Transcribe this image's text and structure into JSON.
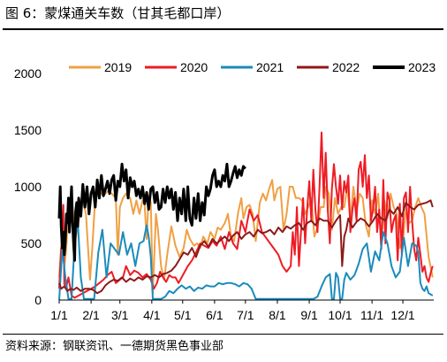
{
  "figure": {
    "title": "图 6：蒙煤通关车数（甘其毛都口岸）",
    "source": "资料来源：钢联资讯、一德期货黑色事业部"
  },
  "chart_data": {
    "type": "line",
    "title": "",
    "xlabel": "",
    "ylabel": "",
    "x_tick_labels": [
      "1/1",
      "2/1",
      "3/1",
      "4/1",
      "5/1",
      "6/1",
      "7/1",
      "8/1",
      "9/1",
      "10/1",
      "11/1",
      "12/1"
    ],
    "ylim": [
      0,
      2000
    ],
    "y_ticks": [
      0,
      500,
      1000,
      1500,
      2000
    ],
    "grid": false,
    "legend_position": "top",
    "x_unit": "day of year",
    "series": [
      {
        "name": "2019",
        "color": "#f0a044",
        "x": [
          1,
          4,
          6,
          8,
          10,
          14,
          17,
          20,
          24,
          27,
          31,
          33,
          36,
          40,
          44,
          48,
          52,
          56,
          58,
          60,
          63,
          66,
          70,
          73,
          76,
          79,
          82,
          84,
          86,
          88,
          90,
          92,
          95,
          97,
          100,
          103,
          106,
          110,
          114,
          118,
          122,
          125,
          128,
          132,
          135,
          138,
          141,
          145,
          148,
          152,
          155,
          158,
          162,
          165,
          168,
          171,
          175,
          178,
          180,
          183,
          186,
          189,
          192,
          196,
          199,
          202,
          205,
          208,
          210,
          213,
          216,
          219,
          222,
          225,
          228,
          231,
          234,
          237,
          240,
          243,
          246,
          249,
          252,
          255,
          258,
          260,
          263,
          266,
          269,
          272,
          275,
          278,
          281,
          284,
          287,
          290,
          293,
          296,
          299,
          302,
          305,
          308,
          311,
          314,
          317,
          320,
          323,
          326,
          329,
          332,
          335,
          338,
          341,
          344,
          347,
          350,
          353,
          356,
          360,
          364
        ],
        "y": [
          200,
          620,
          280,
          480,
          860,
          820,
          540,
          700,
          880,
          760,
          180,
          440,
          900,
          960,
          920,
          960,
          940,
          900,
          400,
          820,
          900,
          940,
          900,
          760,
          880,
          760,
          880,
          840,
          540,
          920,
          860,
          60,
          760,
          620,
          300,
          180,
          400,
          650,
          480,
          380,
          460,
          620,
          540,
          480,
          500,
          460,
          560,
          500,
          600,
          540,
          640,
          620,
          680,
          760,
          560,
          520,
          780,
          900,
          720,
          820,
          840,
          760,
          520,
          860,
          940,
          880,
          980,
          1060,
          880,
          980,
          1000,
          620,
          760,
          1000,
          1000,
          900,
          900,
          880,
          760,
          820,
          900,
          560,
          640,
          820,
          820,
          1000,
          940,
          620,
          900,
          760,
          820,
          820,
          1000,
          700,
          1000,
          780,
          940,
          900,
          660,
          560,
          880,
          760,
          940,
          500,
          880,
          720,
          940,
          820,
          760,
          460,
          520,
          800,
          680,
          700,
          820,
          900,
          820,
          760,
          380,
          200
        ]
      },
      {
        "name": "2020",
        "color": "#ee1c25",
        "x": [
          1,
          2,
          3,
          4,
          5,
          6,
          8,
          10,
          13,
          16,
          20,
          24,
          28,
          32,
          36,
          40,
          44,
          48,
          52,
          56,
          60,
          63,
          66,
          70,
          74,
          78,
          82,
          86,
          90,
          93,
          96,
          99,
          102,
          105,
          108,
          111,
          114,
          117,
          120,
          123,
          126,
          130,
          134,
          138,
          142,
          146,
          150,
          154,
          158,
          162,
          166,
          170,
          174,
          178,
          182,
          186,
          190,
          194,
          198,
          202,
          206,
          210,
          214,
          218,
          222,
          226,
          228,
          230,
          232,
          234,
          236,
          238,
          240,
          242,
          244,
          246,
          248,
          250,
          252,
          254,
          256,
          258,
          260,
          262,
          264,
          266,
          268,
          270,
          272,
          274,
          276,
          278,
          280,
          282,
          284,
          286,
          288,
          290,
          292,
          294,
          296,
          298,
          300,
          302,
          304,
          306,
          308,
          310,
          312,
          314,
          316,
          318,
          320,
          322,
          324,
          326,
          328,
          330,
          332,
          334,
          336,
          338,
          340,
          342,
          344,
          346,
          348,
          350,
          352,
          354,
          356,
          358,
          360,
          362,
          364
        ],
        "y": [
          100,
          300,
          460,
          420,
          840,
          140,
          120,
          200,
          40,
          20,
          40,
          60,
          80,
          100,
          120,
          150,
          180,
          220,
          250,
          150,
          180,
          200,
          300,
          220,
          260,
          240,
          200,
          230,
          180,
          100,
          150,
          250,
          200,
          160,
          220,
          200,
          200,
          150,
          200,
          250,
          300,
          350,
          420,
          500,
          480,
          460,
          520,
          480,
          560,
          450,
          600,
          500,
          450,
          700,
          600,
          800,
          700,
          750,
          600,
          550,
          500,
          450,
          400,
          300,
          250,
          300,
          600,
          400,
          820,
          300,
          600,
          900,
          500,
          800,
          1050,
          700,
          1150,
          800,
          600,
          1000,
          1480,
          900,
          1300,
          800,
          500,
          980,
          1200,
          1000,
          850,
          1100,
          800,
          1050,
          950,
          1100,
          600,
          800,
          900,
          700,
          1150,
          1220,
          1000,
          1280,
          900,
          1100,
          700,
          800,
          1000,
          600,
          800,
          450,
          1060,
          500,
          950,
          880,
          600,
          700,
          750,
          350,
          850,
          400,
          900,
          950,
          600,
          1000,
          700,
          450,
          350,
          550,
          400,
          250,
          300,
          200,
          160,
          240,
          300
        ]
      },
      {
        "name": "2021",
        "color": "#1b8bbb",
        "x": [
          1,
          4,
          7,
          10,
          13,
          16,
          19,
          22,
          25,
          28,
          31,
          35,
          39,
          43,
          47,
          51,
          55,
          59,
          63,
          67,
          71,
          75,
          79,
          83,
          86,
          88,
          90,
          92,
          94,
          96,
          98,
          100,
          104,
          108,
          112,
          116,
          120,
          124,
          128,
          132,
          136,
          140,
          144,
          148,
          152,
          156,
          160,
          164,
          168,
          172,
          176,
          180,
          184,
          188,
          192,
          196,
          200,
          204,
          208,
          212,
          216,
          220,
          224,
          228,
          232,
          236,
          240,
          244,
          248,
          252,
          256,
          260,
          264,
          266,
          268,
          270,
          272,
          274,
          276,
          278,
          280,
          284,
          288,
          292,
          296,
          300,
          304,
          308,
          312,
          316,
          320,
          324,
          328,
          332,
          336,
          340,
          344,
          348,
          350,
          352,
          354,
          356,
          358,
          360,
          362,
          364
        ],
        "y": [
          0,
          450,
          200,
          10,
          10,
          500,
          700,
          200,
          10,
          10,
          10,
          10,
          420,
          620,
          200,
          500,
          450,
          400,
          600,
          400,
          500,
          300,
          500,
          520,
          660,
          560,
          380,
          10,
          10,
          10,
          10,
          10,
          30,
          80,
          60,
          100,
          130,
          100,
          120,
          80,
          110,
          100,
          130,
          120,
          120,
          150,
          140,
          150,
          150,
          140,
          120,
          150,
          140,
          100,
          10,
          10,
          10,
          10,
          10,
          10,
          10,
          10,
          10,
          10,
          10,
          10,
          10,
          10,
          10,
          30,
          120,
          200,
          230,
          10,
          10,
          240,
          200,
          10,
          10,
          180,
          240,
          180,
          220,
          320,
          450,
          500,
          250,
          430,
          350,
          600,
          500,
          300,
          200,
          250,
          550,
          300,
          500,
          480,
          420,
          150,
          100,
          80,
          120,
          60,
          50,
          40
        ]
      },
      {
        "name": "2022",
        "color": "#8b1a1a",
        "x": [
          1,
          3,
          6,
          9,
          12,
          15,
          18,
          22,
          26,
          30,
          34,
          38,
          42,
          46,
          50,
          54,
          58,
          62,
          66,
          70,
          74,
          78,
          82,
          86,
          90,
          94,
          98,
          102,
          106,
          110,
          114,
          118,
          122,
          126,
          130,
          134,
          138,
          142,
          146,
          150,
          154,
          158,
          162,
          166,
          170,
          174,
          178,
          182,
          186,
          190,
          194,
          198,
          202,
          206,
          210,
          214,
          218,
          222,
          226,
          230,
          234,
          238,
          242,
          246,
          250,
          254,
          258,
          262,
          266,
          270,
          274,
          276,
          278,
          280,
          282,
          286,
          290,
          294,
          298,
          302,
          306,
          310,
          314,
          318,
          322,
          326,
          330,
          334,
          338,
          342,
          346,
          350,
          354,
          358,
          362,
          364
        ],
        "y": [
          150,
          100,
          120,
          80,
          100,
          90,
          110,
          80,
          100,
          100,
          90,
          60,
          80,
          130,
          160,
          180,
          170,
          200,
          160,
          190,
          170,
          200,
          180,
          210,
          200,
          220,
          200,
          230,
          240,
          260,
          300,
          360,
          420,
          400,
          460,
          380,
          480,
          520,
          470,
          540,
          500,
          530,
          560,
          520,
          570,
          600,
          540,
          580,
          600,
          560,
          620,
          590,
          600,
          620,
          580,
          640,
          600,
          650,
          630,
          660,
          680,
          620,
          680,
          700,
          660,
          720,
          700,
          700,
          640,
          700,
          750,
          300,
          560,
          620,
          720,
          640,
          690,
          720,
          700,
          650,
          700,
          760,
          720,
          700,
          800,
          760,
          820,
          740,
          860,
          820,
          800,
          840,
          850,
          860,
          880,
          820
        ]
      },
      {
        "name": "2023",
        "color": "#000000",
        "x": [
          1,
          2,
          3,
          4,
          5,
          6,
          7,
          8,
          9,
          10,
          11,
          12,
          13,
          14,
          15,
          16,
          17,
          18,
          19,
          20,
          22,
          24,
          26,
          28,
          30,
          32,
          34,
          36,
          38,
          40,
          42,
          44,
          46,
          48,
          50,
          52,
          54,
          56,
          58,
          60,
          62,
          64,
          66,
          68,
          70,
          72,
          74,
          76,
          78,
          80,
          82,
          84,
          86,
          88,
          90,
          92,
          94,
          96,
          98,
          100,
          102,
          104,
          106,
          108,
          110,
          112,
          114,
          116,
          118,
          120,
          122,
          124,
          126,
          128,
          130,
          132,
          134,
          136,
          138,
          140,
          142,
          144,
          146,
          148,
          150,
          152,
          154,
          156,
          158,
          160,
          162,
          164,
          166,
          168,
          170,
          172,
          174,
          176,
          178,
          180,
          182
        ],
        "y": [
          720,
          1000,
          650,
          460,
          600,
          400,
          520,
          760,
          680,
          900,
          600,
          800,
          1000,
          700,
          500,
          350,
          780,
          860,
          650,
          900,
          740,
          1020,
          820,
          1000,
          760,
          940,
          1000,
          820,
          1060,
          900,
          1100,
          920,
          980,
          1050,
          940,
          1060,
          1100,
          880,
          1050,
          1000,
          1200,
          1050,
          1150,
          900,
          1080,
          1000,
          1050,
          920,
          980,
          900,
          1000,
          850,
          950,
          800,
          980,
          1000,
          860,
          950,
          800,
          820,
          980,
          860,
          1000,
          900,
          980,
          800,
          950,
          700,
          900,
          760,
          980,
          700,
          1000,
          720,
          660,
          900,
          720,
          940,
          700,
          860,
          750,
          1000,
          920,
          980,
          1100,
          1150,
          1000,
          1050,
          1000,
          1100,
          1050,
          1200,
          1000,
          1050,
          1120,
          1180,
          1080,
          1150,
          1100,
          1180,
          1160
        ]
      }
    ]
  }
}
